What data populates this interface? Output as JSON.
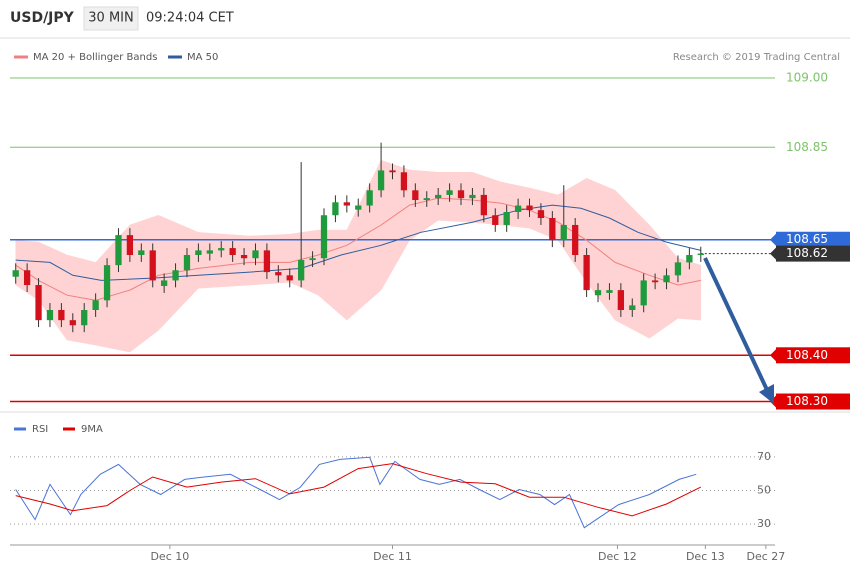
{
  "header": {
    "symbol": "USD/JPY",
    "interval": "30 MIN",
    "time": "09:24:04 CET"
  },
  "chart_data": [
    {
      "type": "candlestick",
      "credit": "Research © 2019 Trading Central",
      "xlim": [
        -0.5,
        66.5
      ],
      "ylim": [
        108.26,
        109.08
      ],
      "up_color": "#1f9a3c",
      "down_color": "#d4101c",
      "open": [
        108.57,
        108.584,
        108.552,
        108.476,
        108.498,
        108.476,
        108.465,
        108.498,
        108.519,
        108.595,
        108.66,
        108.617,
        108.627,
        108.55,
        108.562,
        108.584,
        108.617,
        108.62,
        108.627,
        108.632,
        108.617,
        108.61,
        108.627,
        108.58,
        108.573,
        108.562,
        108.606,
        108.61,
        108.703,
        108.731,
        108.715,
        108.724,
        108.757,
        108.8,
        108.796,
        108.757,
        108.736,
        108.74,
        108.747,
        108.757,
        108.74,
        108.747,
        108.703,
        108.682,
        108.71,
        108.724,
        108.714,
        108.697,
        108.649,
        108.682,
        108.617,
        108.53,
        108.535,
        108.541,
        108.498,
        108.508,
        108.562,
        108.558,
        108.573,
        108.601,
        108.617
      ],
      "high": [
        108.599,
        108.599,
        108.567,
        108.513,
        108.513,
        108.491,
        108.513,
        108.534,
        108.61,
        108.675,
        108.675,
        108.642,
        108.642,
        108.577,
        108.599,
        108.632,
        108.642,
        108.642,
        108.647,
        108.647,
        108.632,
        108.642,
        108.642,
        108.595,
        108.588,
        108.818,
        108.625,
        108.718,
        108.746,
        108.746,
        108.739,
        108.772,
        108.86,
        108.815,
        108.811,
        108.772,
        108.755,
        108.762,
        108.772,
        108.772,
        108.762,
        108.762,
        108.718,
        108.725,
        108.739,
        108.739,
        108.729,
        108.712,
        108.768,
        108.697,
        108.632,
        108.556,
        108.556,
        108.556,
        108.523,
        108.577,
        108.577,
        108.588,
        108.616,
        108.632,
        108.635
      ],
      "low": [
        108.555,
        108.537,
        108.461,
        108.461,
        108.461,
        108.45,
        108.45,
        108.483,
        108.504,
        108.58,
        108.602,
        108.602,
        108.547,
        108.535,
        108.547,
        108.569,
        108.602,
        108.605,
        108.612,
        108.602,
        108.595,
        108.595,
        108.565,
        108.558,
        108.547,
        108.547,
        108.591,
        108.595,
        108.688,
        108.709,
        108.7,
        108.709,
        108.742,
        108.781,
        108.742,
        108.721,
        108.721,
        108.725,
        108.732,
        108.725,
        108.725,
        108.688,
        108.667,
        108.667,
        108.695,
        108.699,
        108.682,
        108.634,
        108.634,
        108.602,
        108.526,
        108.515,
        108.52,
        108.483,
        108.483,
        108.493,
        108.543,
        108.543,
        108.558,
        108.586,
        108.602
      ],
      "close": [
        108.584,
        108.552,
        108.476,
        108.498,
        108.476,
        108.465,
        108.498,
        108.519,
        108.595,
        108.66,
        108.617,
        108.627,
        108.562,
        108.562,
        108.584,
        108.617,
        108.627,
        108.627,
        108.632,
        108.617,
        108.61,
        108.627,
        108.58,
        108.573,
        108.562,
        108.606,
        108.61,
        108.703,
        108.731,
        108.724,
        108.724,
        108.757,
        108.8,
        108.796,
        108.757,
        108.736,
        108.74,
        108.747,
        108.757,
        108.74,
        108.747,
        108.703,
        108.682,
        108.71,
        108.724,
        108.714,
        108.697,
        108.649,
        108.682,
        108.617,
        108.541,
        108.541,
        108.541,
        108.498,
        108.508,
        108.562,
        108.558,
        108.573,
        108.601,
        108.617,
        108.62
      ],
      "series": [
        {
          "name": "MA 20 + Bollinger Bands",
          "color": "#f08080",
          "band_color": "#ffd3d3",
          "x": [
            0,
            2,
            4.5,
            7,
            10,
            12.5,
            16,
            20.5,
            24,
            26.5,
            29,
            32,
            34.5,
            37,
            40,
            42.5,
            45,
            47.5,
            50,
            52.5,
            55.5,
            58,
            60
          ],
          "values": [
            108.595,
            108.562,
            108.53,
            108.519,
            108.541,
            108.573,
            108.588,
            108.601,
            108.601,
            108.617,
            108.638,
            108.682,
            108.725,
            108.74,
            108.736,
            108.729,
            108.714,
            108.688,
            108.649,
            108.601,
            108.573,
            108.552,
            108.562
          ],
          "upper": [
            108.649,
            108.645,
            108.617,
            108.601,
            108.682,
            108.703,
            108.666,
            108.658,
            108.662,
            108.671,
            108.671,
            108.822,
            108.801,
            108.796,
            108.796,
            108.775,
            108.762,
            108.747,
            108.783,
            108.757,
            108.682,
            108.61,
            108.595
          ],
          "lower": [
            108.552,
            108.519,
            108.433,
            108.422,
            108.407,
            108.454,
            108.545,
            108.552,
            108.558,
            108.53,
            108.476,
            108.541,
            108.649,
            108.692,
            108.688,
            108.682,
            108.675,
            108.649,
            108.558,
            108.476,
            108.437,
            108.48,
            108.476
          ]
        },
        {
          "name": "MA 50",
          "color": "#2f5d9e",
          "x": [
            0,
            3,
            5,
            7.5,
            12,
            16,
            20.5,
            25,
            28.5,
            32,
            35.5,
            40,
            44,
            47,
            49.5,
            52,
            54.5,
            57,
            60
          ],
          "values": [
            108.606,
            108.601,
            108.573,
            108.562,
            108.567,
            108.573,
            108.58,
            108.588,
            108.617,
            108.638,
            108.666,
            108.688,
            108.714,
            108.725,
            108.718,
            108.697,
            108.666,
            108.645,
            108.627
          ]
        }
      ],
      "levels": [
        {
          "value": 109,
          "label": "109.00",
          "color": "#7cc46a",
          "style": "text"
        },
        {
          "value": 108.85,
          "label": "108.85",
          "color": "#7cc46a",
          "style": "text"
        },
        {
          "value": 108.65,
          "label": "108.65",
          "color": "#2f6bd8",
          "style": "box"
        },
        {
          "value": 108.62,
          "label": "108.62",
          "color": "#333333",
          "style": "dotted"
        },
        {
          "value": 108.4,
          "label": "108.40",
          "color": "#e00000",
          "style": "box"
        },
        {
          "value": 108.3,
          "label": "108.30",
          "color": "#e00000",
          "style": "box"
        }
      ]
    },
    {
      "type": "line",
      "xlim": [
        -0.5,
        66.5
      ],
      "ylim": [
        20,
        80
      ],
      "yticks": [
        30,
        50,
        70
      ],
      "grid": true,
      "xticks": [
        {
          "value": 13.5,
          "label": "Dec 10"
        },
        {
          "value": 33,
          "label": "Dec 11"
        },
        {
          "value": 52.7,
          "label": "Dec 12"
        },
        {
          "value": 60.4,
          "label": "Dec 13"
        },
        {
          "value": 65.7,
          "label": "Dec 27"
        }
      ],
      "series": [
        {
          "name": "RSI",
          "color": "#4a74d8",
          "x": [
            0,
            1.7,
            3,
            4.8,
            5.7,
            7.4,
            9,
            10.9,
            12.7,
            14.8,
            16.2,
            18.8,
            21.4,
            23.1,
            24.9,
            26.6,
            28.4,
            31,
            31.9,
            33.2,
            35.4,
            37.1,
            38.9,
            40.6,
            42.4,
            44.1,
            45.9,
            47.2,
            48.5,
            49.8,
            51.1,
            52.8,
            55.5,
            58.1,
            59.6
          ],
          "values": [
            50.6,
            32.7,
            53.6,
            35.7,
            47.6,
            59.6,
            65.5,
            53.6,
            47.6,
            56.6,
            57.8,
            59.6,
            50.6,
            44.6,
            51.8,
            65.5,
            68.5,
            69.7,
            53.6,
            67.3,
            56.6,
            53.6,
            56.6,
            50.6,
            44.6,
            50.6,
            47.6,
            41.6,
            47.6,
            27.9,
            33.9,
            41.6,
            47.6,
            56.6,
            59.6
          ]
        },
        {
          "name": "9MA",
          "color": "#e00000",
          "x": [
            0,
            3,
            5,
            8,
            10,
            12,
            15,
            18,
            21,
            24,
            27,
            30,
            33,
            36,
            39,
            42,
            45,
            48,
            51,
            54,
            57,
            60
          ],
          "values": [
            47,
            42,
            38,
            41,
            50,
            58,
            52,
            55,
            57,
            48,
            52,
            63,
            66,
            60,
            55,
            54,
            46,
            46,
            40,
            35,
            42,
            52
          ]
        }
      ]
    }
  ]
}
